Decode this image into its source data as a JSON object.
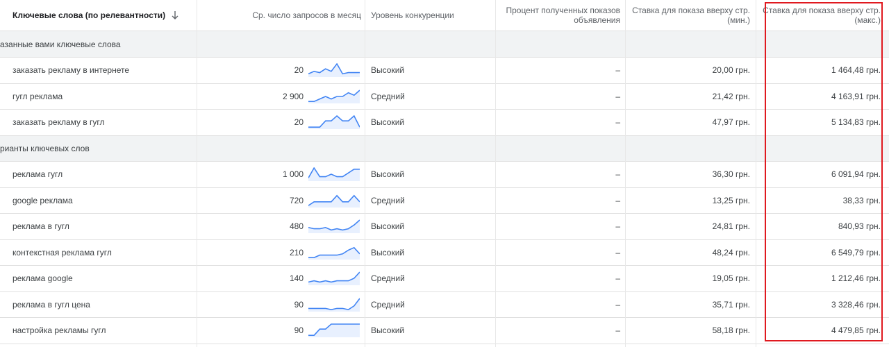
{
  "header": {
    "keyword_col": "Ключевые слова (по релевантности)",
    "searches_col": "Ср. число запросов в месяц",
    "competition_col": "Уровень конкуренции",
    "impr_share_col_1": "Процент полученных показов",
    "impr_share_col_2": "объявления",
    "bid_low_col_1": "Ставка для показа вверху стр.",
    "bid_low_col_2": "(мин.)",
    "bid_high_col_1": "Ставка для показа вверху стр.",
    "bid_high_col_2": "(макс.)"
  },
  "groups": {
    "provided": "азанные вами ключевые слова",
    "ideas": "рианты ключевых слов"
  },
  "rows": [
    {
      "keyword": "заказать рекламу в интернете",
      "searches": "20",
      "competition": "Высокий",
      "share": "–",
      "bid_low": "20,00 грн.",
      "bid_high": "1 464,48 грн.",
      "trend": [
        2,
        4,
        3,
        6,
        4,
        10,
        2,
        3,
        3,
        3
      ]
    },
    {
      "keyword": "гугл реклама",
      "searches": "2 900",
      "competition": "Средний",
      "share": "–",
      "bid_low": "21,42 грн.",
      "bid_high": "4 163,91 грн.",
      "trend": [
        1,
        1,
        3,
        5,
        3,
        5,
        5,
        8,
        6,
        10
      ]
    },
    {
      "keyword": "заказать рекламу в гугл",
      "searches": "20",
      "competition": "Высокий",
      "share": "–",
      "bid_low": "47,97 грн.",
      "bid_high": "5 134,83 грн.",
      "trend": [
        1,
        1,
        1,
        6,
        6,
        10,
        6,
        6,
        10,
        1
      ]
    },
    {
      "keyword": "реклама гугл",
      "searches": "1 000",
      "competition": "Высокий",
      "share": "–",
      "bid_low": "36,30 грн.",
      "bid_high": "6 091,94 грн.",
      "trend": [
        2,
        10,
        3,
        3,
        5,
        3,
        3,
        6,
        9,
        9
      ]
    },
    {
      "keyword": "google реклама",
      "searches": "720",
      "competition": "Средний",
      "share": "–",
      "bid_low": "13,25 грн.",
      "bid_high": "38,33 грн.",
      "trend": [
        1,
        4,
        4,
        4,
        4,
        9,
        4,
        4,
        9,
        4
      ]
    },
    {
      "keyword": "реклама в гугл",
      "searches": "480",
      "competition": "Высокий",
      "share": "–",
      "bid_low": "24,81 грн.",
      "bid_high": "840,93 грн.",
      "trend": [
        4,
        3,
        3,
        4,
        2,
        3,
        2,
        3,
        6,
        10
      ]
    },
    {
      "keyword": "контекстная реклама гугл",
      "searches": "210",
      "competition": "Высокий",
      "share": "–",
      "bid_low": "48,24 грн.",
      "bid_high": "6 549,79 грн.",
      "trend": [
        1,
        1,
        3,
        3,
        3,
        3,
        4,
        7,
        9,
        4
      ]
    },
    {
      "keyword": "реклама google",
      "searches": "140",
      "competition": "Средний",
      "share": "–",
      "bid_low": "19,05 грн.",
      "bid_high": "1 212,46 грн.",
      "trend": [
        2,
        3,
        2,
        3,
        2,
        3,
        3,
        3,
        5,
        10
      ]
    },
    {
      "keyword": "реклама в гугл цена",
      "searches": "90",
      "competition": "Средний",
      "share": "–",
      "bid_low": "35,71 грн.",
      "bid_high": "3 328,46 грн.",
      "trend": [
        2,
        2,
        2,
        2,
        1,
        2,
        2,
        1,
        4,
        10
      ]
    },
    {
      "keyword": "настройка рекламы гугл",
      "searches": "90",
      "competition": "Высокий",
      "share": "–",
      "bid_low": "58,18 грн.",
      "bid_high": "4 479,85 грн.",
      "trend": [
        1,
        1,
        6,
        6,
        10,
        10,
        10,
        10,
        10,
        10
      ]
    }
  ],
  "colors": {
    "accent": "#4285f4",
    "trend_fill": "#e8f0fe",
    "highlight": "#e0191f",
    "group_bg": "#f1f3f4"
  }
}
